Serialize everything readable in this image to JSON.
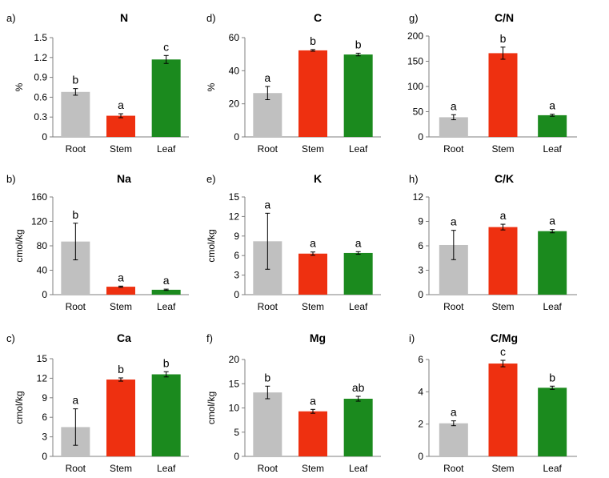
{
  "figure": {
    "categories": [
      "Root",
      "Stem",
      "Leaf"
    ],
    "colors": [
      "#c0c0c0",
      "#ee3010",
      "#1b8a1e"
    ]
  },
  "chart_data": [
    {
      "type": "bar",
      "panel": "a)",
      "title": "N",
      "ylabel": "%",
      "categories": [
        "Root",
        "Stem",
        "Leaf"
      ],
      "values": [
        0.68,
        0.32,
        1.17
      ],
      "errors": [
        0.05,
        0.03,
        0.06
      ],
      "letters": [
        "b",
        "a",
        "c"
      ],
      "ylim": [
        0,
        1.5
      ],
      "yticks": [
        0,
        0.3,
        0.6,
        0.9,
        1.2,
        1.5
      ],
      "yticklabels": [
        "0",
        "0.3",
        "0.6",
        "0.9",
        "1.2",
        "1.5"
      ]
    },
    {
      "type": "bar",
      "panel": "d)",
      "title": "C",
      "ylabel": "%",
      "categories": [
        "Root",
        "Stem",
        "Leaf"
      ],
      "values": [
        26.5,
        52.3,
        49.8
      ],
      "errors": [
        4.0,
        0.5,
        0.8
      ],
      "letters": [
        "a",
        "b",
        "b"
      ],
      "ylim": [
        0,
        60
      ],
      "yticks": [
        0,
        20,
        40,
        60
      ],
      "yticklabels": [
        "0",
        "20",
        "40",
        "60"
      ]
    },
    {
      "type": "bar",
      "panel": "g)",
      "title": "C/N",
      "ylabel": "",
      "categories": [
        "Root",
        "Stem",
        "Leaf"
      ],
      "values": [
        39,
        166,
        43
      ],
      "errors": [
        5,
        12,
        2
      ],
      "letters": [
        "a",
        "b",
        "a"
      ],
      "ylim": [
        0,
        200
      ],
      "yticks": [
        0,
        50,
        100,
        150,
        200
      ],
      "yticklabels": [
        "0",
        "50",
        "100",
        "150",
        "200"
      ]
    },
    {
      "type": "bar",
      "panel": "b)",
      "title": "Na",
      "ylabel": "cmol/kg",
      "categories": [
        "Root",
        "Stem",
        "Leaf"
      ],
      "values": [
        87,
        13,
        8
      ],
      "errors": [
        30,
        1,
        1
      ],
      "letters": [
        "b",
        "a",
        "a"
      ],
      "ylim": [
        0,
        160
      ],
      "yticks": [
        0,
        40,
        80,
        120,
        160
      ],
      "yticklabels": [
        "0",
        "40",
        "80",
        "120",
        "160"
      ]
    },
    {
      "type": "bar",
      "panel": "e)",
      "title": "K",
      "ylabel": "cmol/kg",
      "categories": [
        "Root",
        "Stem",
        "Leaf"
      ],
      "values": [
        8.2,
        6.3,
        6.4
      ],
      "errors": [
        4.3,
        0.25,
        0.2
      ],
      "letters": [
        "a",
        "a",
        "a"
      ],
      "ylim": [
        0,
        15
      ],
      "yticks": [
        0,
        3,
        6,
        9,
        12,
        15
      ],
      "yticklabels": [
        "0",
        "3",
        "6",
        "9",
        "12",
        "15"
      ]
    },
    {
      "type": "bar",
      "panel": "h)",
      "title": "C/K",
      "ylabel": "",
      "categories": [
        "Root",
        "Stem",
        "Leaf"
      ],
      "values": [
        6.1,
        8.3,
        7.8
      ],
      "errors": [
        1.8,
        0.35,
        0.2
      ],
      "letters": [
        "a",
        "a",
        "a"
      ],
      "ylim": [
        0,
        12
      ],
      "yticks": [
        0,
        3,
        6,
        9,
        12
      ],
      "yticklabels": [
        "0",
        "3",
        "6",
        "9",
        "12"
      ]
    },
    {
      "type": "bar",
      "panel": "c)",
      "title": "Ca",
      "ylabel": "cmol/kg",
      "categories": [
        "Root",
        "Stem",
        "Leaf"
      ],
      "values": [
        4.5,
        11.8,
        12.6
      ],
      "errors": [
        2.8,
        0.25,
        0.4
      ],
      "letters": [
        "a",
        "b",
        "b"
      ],
      "ylim": [
        0,
        15
      ],
      "yticks": [
        0,
        3,
        6,
        9,
        12,
        15
      ],
      "yticklabels": [
        "0",
        "3",
        "6",
        "9",
        "12",
        "15"
      ]
    },
    {
      "type": "bar",
      "panel": "f)",
      "title": "Mg",
      "ylabel": "cmol/kg",
      "categories": [
        "Root",
        "Stem",
        "Leaf"
      ],
      "values": [
        13.2,
        9.3,
        11.9
      ],
      "errors": [
        1.3,
        0.4,
        0.5
      ],
      "letters": [
        "b",
        "a",
        "ab"
      ],
      "ylim": [
        0,
        20
      ],
      "yticks": [
        0,
        5,
        10,
        15,
        20
      ],
      "yticklabels": [
        "0",
        "5",
        "10",
        "15",
        "20"
      ]
    },
    {
      "type": "bar",
      "panel": "i)",
      "title": "C/Mg",
      "ylabel": "",
      "categories": [
        "Root",
        "Stem",
        "Leaf"
      ],
      "values": [
        2.05,
        5.75,
        4.25
      ],
      "errors": [
        0.15,
        0.2,
        0.1
      ],
      "letters": [
        "a",
        "c",
        "b"
      ],
      "ylim": [
        0,
        6
      ],
      "yticks": [
        0,
        2,
        4,
        6
      ],
      "yticklabels": [
        "0",
        "2",
        "4",
        "6"
      ]
    }
  ]
}
